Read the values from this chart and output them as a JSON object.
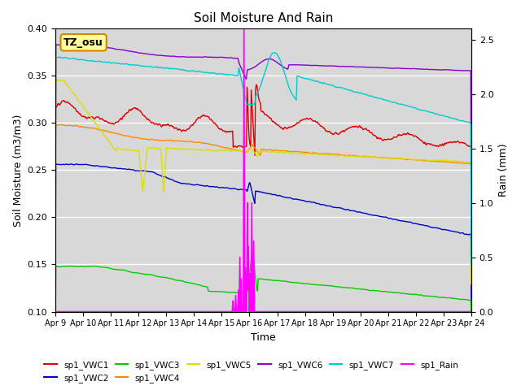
{
  "title": "Soil Moisture And Rain",
  "ylabel_left": "Soil Moisture (m3/m3)",
  "ylabel_right": "Rain (mm)",
  "xlabel": "Time",
  "ylim_left": [
    0.1,
    0.4
  ],
  "ylim_right": [
    0.0,
    2.6
  ],
  "background_color": "#d8d8d8",
  "annotation_text": "TZ_osu",
  "annotation_box_color": "#ffff99",
  "annotation_box_edge": "#cc8800",
  "series": {
    "sp1_VWC1": {
      "color": "#dd0000",
      "label": "sp1_VWC1"
    },
    "sp1_VWC2": {
      "color": "#0000cc",
      "label": "sp1_VWC2"
    },
    "sp1_VWC3": {
      "color": "#00cc00",
      "label": "sp1_VWC3"
    },
    "sp1_VWC4": {
      "color": "#ff8800",
      "label": "sp1_VWC4"
    },
    "sp1_VWC5": {
      "color": "#dddd00",
      "label": "sp1_VWC5"
    },
    "sp1_VWC6": {
      "color": "#8800cc",
      "label": "sp1_VWC6"
    },
    "sp1_VWC7": {
      "color": "#00cccc",
      "label": "sp1_VWC7"
    },
    "sp1_Rain": {
      "color": "#ff00ff",
      "label": "sp1_Rain"
    }
  },
  "legend_order": [
    "sp1_VWC1",
    "sp1_VWC2",
    "sp1_VWC3",
    "sp1_VWC4",
    "sp1_VWC5",
    "sp1_VWC6",
    "sp1_VWC7",
    "sp1_Rain"
  ]
}
